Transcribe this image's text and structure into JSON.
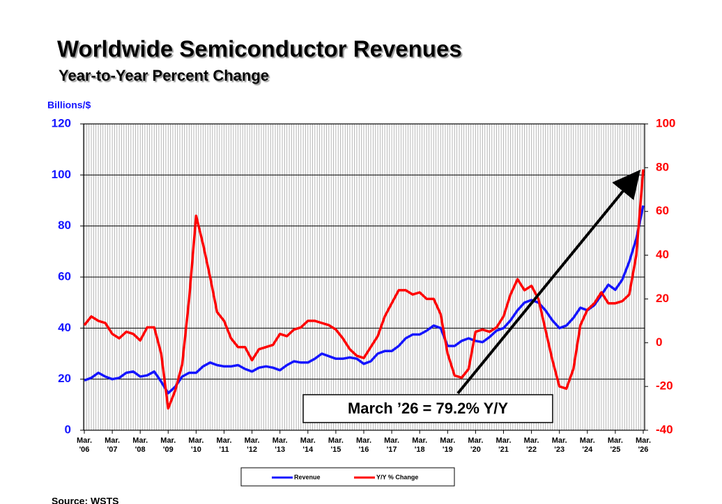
{
  "chart_data": {
    "type": "line",
    "title": "Worldwide Semiconductor Revenues",
    "subtitle": "Year-to-Year Percent Change",
    "y_label": "Billions/$",
    "annotation": "March ’26 = 79.2% Y/Y",
    "source": "Source: WSTS",
    "grid": true,
    "x": [
      "2006-03",
      "2006-06",
      "2006-09",
      "2006-12",
      "2007-03",
      "2007-06",
      "2007-09",
      "2007-12",
      "2008-03",
      "2008-06",
      "2008-09",
      "2008-12",
      "2009-03",
      "2009-06",
      "2009-09",
      "2009-12",
      "2010-03",
      "2010-06",
      "2010-09",
      "2010-12",
      "2011-03",
      "2011-06",
      "2011-09",
      "2011-12",
      "2012-03",
      "2012-06",
      "2012-09",
      "2012-12",
      "2013-03",
      "2013-06",
      "2013-09",
      "2013-12",
      "2014-03",
      "2014-06",
      "2014-09",
      "2014-12",
      "2015-03",
      "2015-06",
      "2015-09",
      "2015-12",
      "2016-03",
      "2016-06",
      "2016-09",
      "2016-12",
      "2017-03",
      "2017-06",
      "2017-09",
      "2017-12",
      "2018-03",
      "2018-06",
      "2018-09",
      "2018-12",
      "2019-03",
      "2019-06",
      "2019-09",
      "2019-12",
      "2020-03",
      "2020-06",
      "2020-09",
      "2020-12",
      "2021-03",
      "2021-06",
      "2021-09",
      "2021-12",
      "2022-03",
      "2022-06",
      "2022-09",
      "2022-12",
      "2023-03",
      "2023-06",
      "2023-09",
      "2023-12",
      "2024-03",
      "2024-06",
      "2024-09",
      "2024-12",
      "2025-03",
      "2025-06",
      "2025-09",
      "2025-12",
      "2026-03"
    ],
    "xticks": [
      {
        "value": "2006-03",
        "label": "Mar. '06"
      },
      {
        "value": "2007-03",
        "label": "Mar. '07"
      },
      {
        "value": "2008-03",
        "label": "Mar. '08"
      },
      {
        "value": "2009-03",
        "label": "Mar. '09"
      },
      {
        "value": "2010-03",
        "label": "Mar. '10"
      },
      {
        "value": "2011-03",
        "label": "Mar. '11"
      },
      {
        "value": "2012-03",
        "label": "Mar. '12"
      },
      {
        "value": "2013-03",
        "label": "Mar. '13"
      },
      {
        "value": "2014-03",
        "label": "Mar. '14"
      },
      {
        "value": "2015-03",
        "label": "Mar. '15"
      },
      {
        "value": "2016-03",
        "label": "Mar. '16"
      },
      {
        "value": "2017-03",
        "label": "Mar. '17"
      },
      {
        "value": "2018-03",
        "label": "Mar. '18"
      },
      {
        "value": "2019-03",
        "label": "Mar. '19"
      },
      {
        "value": "2020-03",
        "label": "Mar. '20"
      },
      {
        "value": "2021-03",
        "label": "Mar. '21"
      },
      {
        "value": "2022-03",
        "label": "Mar. '22"
      },
      {
        "value": "2023-03",
        "label": "Mar. '23"
      },
      {
        "value": "2024-03",
        "label": "Mar. '24"
      },
      {
        "value": "2025-03",
        "label": "Mar. '25"
      },
      {
        "value": "2026-03",
        "label": "Mar. '26"
      }
    ],
    "ylim": [
      0,
      120
    ],
    "yticks": [
      0,
      20,
      40,
      60,
      80,
      100,
      120
    ],
    "y2lim": [
      -40,
      100
    ],
    "y2ticks": [
      -40,
      -20,
      0,
      20,
      40,
      60,
      80,
      100
    ],
    "series": [
      {
        "name": "Revenue",
        "color": "#1414ff",
        "values": [
          19.5,
          20.5,
          22.5,
          21,
          20,
          20.5,
          22.5,
          23,
          21,
          21.5,
          23,
          19,
          14.5,
          17,
          21,
          22.5,
          22.5,
          25,
          26.5,
          25.5,
          25,
          25,
          25.5,
          24,
          23,
          24.5,
          25,
          24.5,
          23.5,
          25.5,
          27,
          26.5,
          26.5,
          28,
          30,
          29,
          28,
          28,
          28.5,
          28,
          26,
          27,
          30,
          31,
          31,
          33,
          36,
          37.5,
          37.5,
          39,
          41,
          40,
          33,
          33,
          35,
          36,
          35,
          34.5,
          36.5,
          39,
          40,
          43,
          47,
          50,
          51,
          50,
          47,
          43,
          40,
          41,
          44,
          48,
          47,
          49,
          53,
          57,
          55,
          59,
          66,
          75,
          88
        ]
      },
      {
        "name": "Y/Y % Change",
        "color": "#ff0000",
        "axis": "y2",
        "values": [
          8,
          12,
          10,
          9,
          4,
          2,
          5,
          4,
          1,
          7,
          7,
          -5,
          -30,
          -22,
          -10,
          20,
          58,
          45,
          30,
          14,
          10,
          2,
          -2,
          -2,
          -8,
          -3,
          -2,
          -1,
          4,
          3,
          6,
          7,
          10,
          10,
          9,
          8,
          6,
          2,
          -3,
          -6,
          -7,
          -2,
          3,
          12,
          18,
          24,
          24,
          22,
          23,
          20,
          20,
          13,
          -5,
          -15,
          -16,
          -12,
          5,
          6,
          5,
          7,
          12,
          22,
          29,
          24,
          26,
          20,
          6,
          -8,
          -20,
          -21,
          -12,
          8,
          15,
          18,
          23,
          18,
          18,
          19,
          22,
          40,
          79.2
        ]
      }
    ]
  }
}
